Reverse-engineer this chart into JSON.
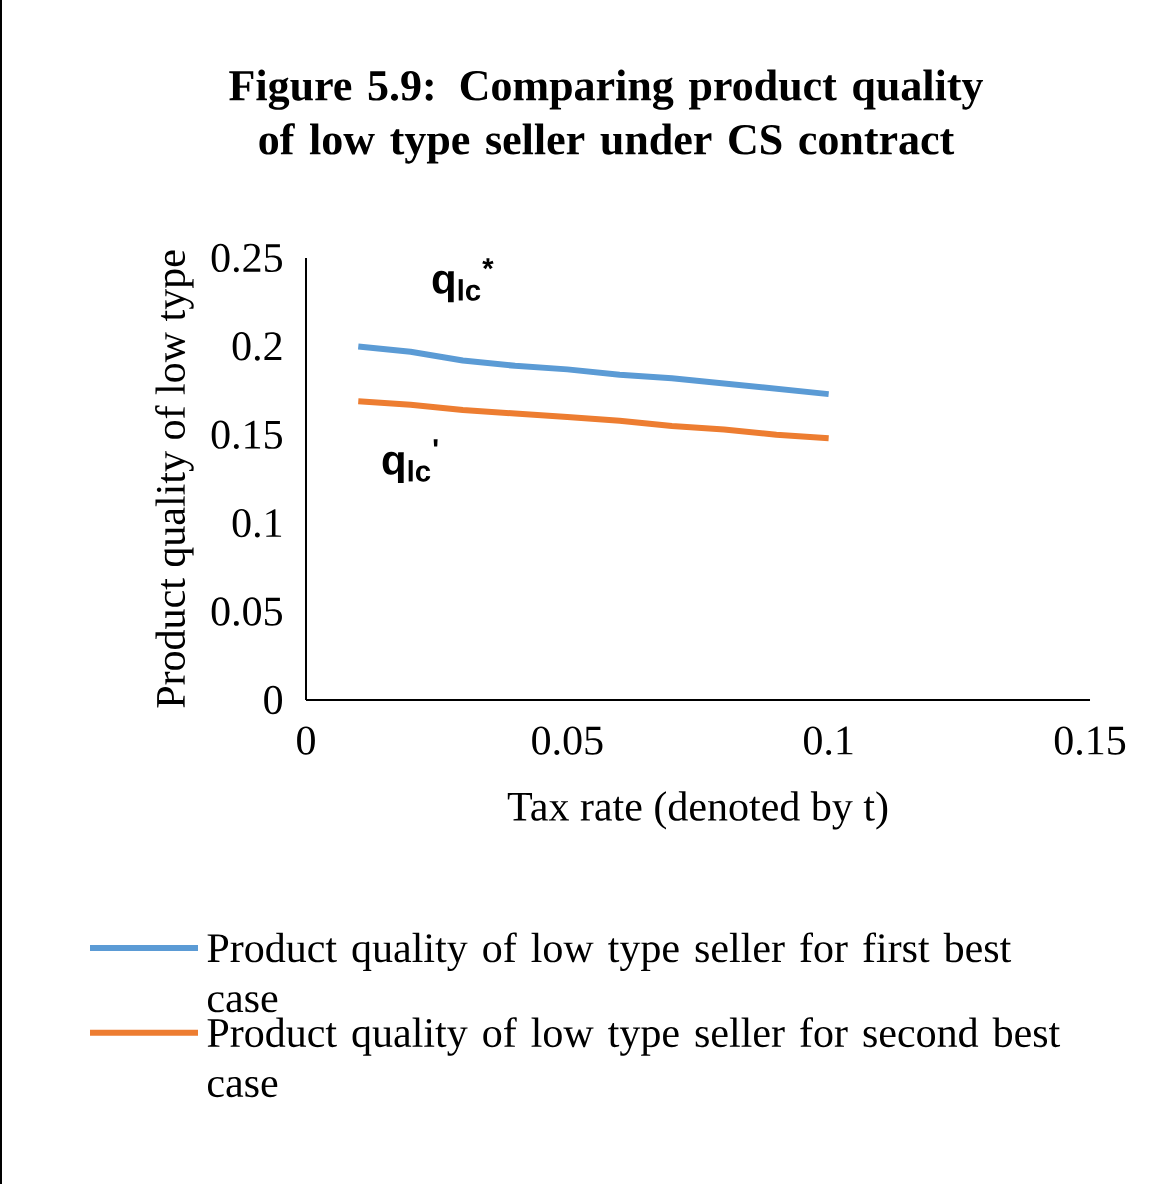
{
  "chart_data": {
    "type": "line",
    "title": "Figure 5.9: Comparing product quality of low type seller under CS contract",
    "xlabel": "Tax rate (denoted by t)",
    "ylabel": "Product quality of low type",
    "x": [
      0.01,
      0.02,
      0.03,
      0.04,
      0.05,
      0.06,
      0.07,
      0.08,
      0.09,
      0.1
    ],
    "series": [
      {
        "name": "Product quality of low type seller for first best case",
        "color": "#5b9bd5",
        "values": [
          0.2,
          0.197,
          0.192,
          0.189,
          0.187,
          0.184,
          0.182,
          0.179,
          0.176,
          0.173
        ]
      },
      {
        "name": "Product quality of low type seller for second best case",
        "color": "#ed7d31",
        "values": [
          0.169,
          0.167,
          0.164,
          0.162,
          0.16,
          0.158,
          0.155,
          0.153,
          0.15,
          0.148
        ]
      }
    ],
    "annotations": [
      "q$_{lc}$$^{*}$",
      "q$_{lc}$$^{'}$"
    ],
    "xlim": [
      0,
      0.15
    ],
    "xticks": [
      0,
      0.05,
      0.1,
      0.15
    ],
    "ylim": [
      0,
      0.25
    ],
    "yticks": [
      0,
      0.05,
      0.1,
      0.15,
      0.2,
      0.25
    ],
    "grid": false,
    "legend": "bottom",
    "marker": "none",
    "line_style": "solid"
  }
}
